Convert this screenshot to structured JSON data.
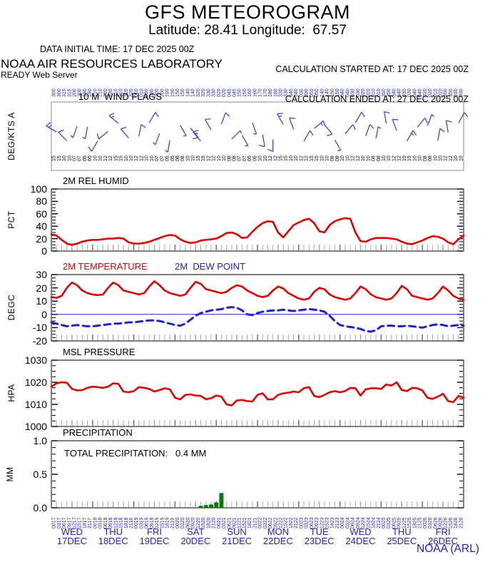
{
  "header": {
    "title": "GFS METEOROGRAM",
    "subtitle": "Latitude: 28.41 Longitude:  67.57",
    "data_initial_time": "DATA INITIAL TIME: 17 DEC 2025 00Z",
    "calc_started": "CALCULATION STARTED AT: 17 DEC 2025 00Z",
    "calc_ended": "CALCULATION ENDED AT: 27 DEC 2025 00Z",
    "org": "NOAA AIR RESOURCES LABORATORY",
    "server": "READY Web Server"
  },
  "footer": {
    "credit": "NOAA (ARL)"
  },
  "colors": {
    "red": "#e00000",
    "blue": "#2222cc",
    "barb_blue": "#4444d4",
    "green": "#0b7a0b",
    "tick_gray": "#aaaaaa",
    "tick_dark": "#777777",
    "wind_border": "#888888"
  },
  "x_axis": {
    "hours_per_step": 3,
    "hour_cycle": [
      "00",
      "03",
      "06",
      "09",
      "12",
      "15",
      "18",
      "21"
    ],
    "days": [
      {
        "dow": "WED",
        "date": "17DEC"
      },
      {
        "dow": "THU",
        "date": "18DEC"
      },
      {
        "dow": "FRI",
        "date": "19DEC"
      },
      {
        "dow": "SAT",
        "date": "20DEC"
      },
      {
        "dow": "SUN",
        "date": "21DEC"
      },
      {
        "dow": "MON",
        "date": "22DEC"
      },
      {
        "dow": "TUE",
        "date": "23DEC"
      },
      {
        "dow": "WED",
        "date": "24DEC"
      },
      {
        "dow": "THU",
        "date": "25DEC"
      },
      {
        "dow": "FRI",
        "date": "26DEC"
      }
    ]
  },
  "chart_data": [
    {
      "id": "wind",
      "type": "wind-barbs",
      "title": "10 M  WIND FLAGS",
      "ylabel": "DEG/KTS A",
      "barbs": [
        {
          "dir": 300,
          "spd": 15
        },
        {
          "dir": 315,
          "spd": 10
        },
        {
          "dir": 200,
          "spd": 7
        },
        {
          "dir": 190,
          "spd": 5
        },
        {
          "dir": 210,
          "spd": 10
        },
        {
          "dir": 230,
          "spd": 12
        },
        {
          "dir": 310,
          "spd": 15
        },
        {
          "dir": 320,
          "spd": 10
        },
        {
          "dir": 10,
          "spd": 12
        },
        {
          "dir": 30,
          "spd": 10
        },
        {
          "dir": 200,
          "spd": 7
        },
        {
          "dir": 190,
          "spd": 5
        },
        {
          "dir": 150,
          "spd": 8
        },
        {
          "dir": 140,
          "spd": 10
        },
        {
          "dir": 320,
          "spd": 15
        },
        {
          "dir": 330,
          "spd": 12
        },
        {
          "dir": 20,
          "spd": 10
        },
        {
          "dir": 45,
          "spd": 8
        },
        {
          "dir": 150,
          "spd": 7
        },
        {
          "dir": 160,
          "spd": 5
        },
        {
          "dir": 170,
          "spd": 10
        },
        {
          "dir": 180,
          "spd": 12
        },
        {
          "dir": 330,
          "spd": 15
        },
        {
          "dir": 340,
          "spd": 10
        },
        {
          "dir": 30,
          "spd": 12
        },
        {
          "dir": 50,
          "spd": 15
        },
        {
          "dir": 140,
          "spd": 10
        },
        {
          "dir": 150,
          "spd": 8
        },
        {
          "dir": 40,
          "spd": 10
        },
        {
          "dir": 30,
          "spd": 12
        },
        {
          "dir": 20,
          "spd": 10
        },
        {
          "dir": 10,
          "spd": 8
        },
        {
          "dir": 350,
          "spd": 10
        },
        {
          "dir": 340,
          "spd": 12
        },
        {
          "dir": 30,
          "spd": 15
        },
        {
          "dir": 40,
          "spd": 10
        },
        {
          "dir": 20,
          "spd": 8
        },
        {
          "dir": 10,
          "spd": 10
        },
        {
          "dir": 350,
          "spd": 12
        },
        {
          "dir": 30,
          "spd": 10
        }
      ]
    },
    {
      "id": "humidity",
      "type": "line",
      "title": "2M REL HUMID",
      "ylabel": "PCT",
      "ylim": [
        0,
        100
      ],
      "yticks": [
        {
          "v": 100,
          "label": "100"
        },
        {
          "v": 80,
          "label": "80"
        },
        {
          "v": 60,
          "label": "60"
        },
        {
          "v": 40,
          "label": "40"
        },
        {
          "v": 20,
          "label": "20"
        },
        {
          "v": 0,
          "label": "0"
        }
      ],
      "ytick_minor": 5,
      "series": [
        {
          "name": "2M REL HUMID",
          "color": "#e00000",
          "style": "solid",
          "values": [
            27,
            25,
            18,
            12,
            10,
            12,
            15,
            17,
            18,
            18,
            19,
            20,
            20,
            21,
            20,
            14,
            12,
            12,
            13,
            15,
            18,
            21,
            24,
            26,
            25,
            19,
            15,
            13,
            14,
            17,
            18,
            19,
            20,
            24,
            29,
            30,
            27,
            21,
            22,
            31,
            39,
            45,
            48,
            47,
            30,
            22,
            32,
            42,
            46,
            50,
            52,
            45,
            32,
            30,
            42,
            48,
            51,
            53,
            52,
            30,
            16,
            15,
            19,
            21,
            21,
            21,
            20,
            19,
            15,
            12,
            11,
            14,
            17,
            21,
            24,
            23,
            20,
            14,
            11,
            19,
            25
          ]
        }
      ]
    },
    {
      "id": "temperature",
      "type": "line",
      "title": "2M TEMPERATURE",
      "legend": [
        {
          "label": "2M TEMPERATURE",
          "color": "#e00000"
        },
        {
          "label": "2M  DEW POINT",
          "color": "#2222cc"
        }
      ],
      "ylabel": "DEGC",
      "ylim": [
        -20,
        30
      ],
      "yticks": [
        {
          "v": 30,
          "label": "30"
        },
        {
          "v": 20,
          "label": "20"
        },
        {
          "v": 10,
          "label": "10"
        },
        {
          "v": 0,
          "label": "0"
        },
        {
          "v": -10,
          "label": "-10"
        },
        {
          "v": -20,
          "label": "-20"
        }
      ],
      "ytick_minor": 2.5,
      "zero_line": true,
      "series": [
        {
          "name": "2M TEMPERATURE",
          "color": "#e00000",
          "style": "solid",
          "values": [
            13,
            12.5,
            14,
            20,
            24,
            22,
            18,
            16,
            15,
            14.5,
            15,
            20,
            24,
            22,
            18,
            17,
            16,
            15,
            16,
            21,
            25,
            22,
            18,
            16,
            15,
            14,
            15,
            20,
            24.5,
            23,
            19,
            18,
            17,
            16,
            17,
            20,
            22,
            21,
            18,
            16,
            14,
            13,
            14,
            18,
            21,
            19.5,
            16,
            14,
            12,
            11,
            12,
            17,
            20,
            19,
            15,
            13,
            12,
            11,
            12,
            16,
            21,
            19,
            15,
            13,
            12,
            11,
            12,
            16,
            21.5,
            19,
            14,
            13,
            12,
            11,
            12,
            16,
            21,
            18,
            14,
            12,
            11
          ]
        },
        {
          "name": "2M  DEW POINT",
          "color": "#2222cc",
          "style": "dashed",
          "values": [
            -6,
            -7,
            -8,
            -9,
            -8.5,
            -8,
            -8.5,
            -9,
            -9,
            -8.5,
            -8,
            -7.5,
            -7,
            -7,
            -6.5,
            -6,
            -6,
            -5.5,
            -5,
            -4.5,
            -4.5,
            -5,
            -6,
            -7,
            -8,
            -8.5,
            -7,
            -4,
            -1,
            1,
            2,
            3,
            3.5,
            4,
            5,
            5.5,
            5,
            3,
            0,
            -0.5,
            1,
            2,
            2.5,
            3,
            3,
            3.5,
            3,
            2.5,
            3,
            3.5,
            4,
            3.5,
            3,
            2,
            -1,
            -5,
            -8,
            -9,
            -9.5,
            -10,
            -11,
            -12.5,
            -13,
            -12,
            -9,
            -8.5,
            -8.5,
            -9,
            -9,
            -8.5,
            -9,
            -9.5,
            -10,
            -9,
            -8,
            -7.5,
            -8,
            -9,
            -8.5,
            -8,
            -8.5
          ]
        }
      ]
    },
    {
      "id": "pressure",
      "type": "line",
      "title": "MSL PRESSURE",
      "ylabel": "HPA",
      "ylim": [
        1000,
        1030
      ],
      "yticks": [
        {
          "v": 1030,
          "label": "1030"
        },
        {
          "v": 1020,
          "label": "1020"
        },
        {
          "v": 1010,
          "label": "1010"
        },
        {
          "v": 1000,
          "label": "1000"
        }
      ],
      "ytick_minor": 2.5,
      "series": [
        {
          "name": "MSL PRESSURE",
          "color": "#e00000",
          "style": "solid",
          "values": [
            1018,
            1019.5,
            1020,
            1019.8,
            1017,
            1016.3,
            1016.5,
            1017.5,
            1018,
            1017.8,
            1017.5,
            1018,
            1019.5,
            1019.3,
            1015.8,
            1015.5,
            1016,
            1017.8,
            1017.5,
            1017,
            1015.8,
            1016.5,
            1017.3,
            1016.8,
            1013,
            1012.3,
            1014.3,
            1014.5,
            1014,
            1013.8,
            1012.3,
            1012.8,
            1014,
            1013.5,
            1010,
            1009.5,
            1011.8,
            1012,
            1011.5,
            1011.3,
            1014.3,
            1015,
            1012.3,
            1012.3,
            1014.3,
            1015,
            1015.3,
            1015.8,
            1015.5,
            1017.3,
            1017.8,
            1013.8,
            1013.3,
            1014.3,
            1015.5,
            1016,
            1015.5,
            1016,
            1017.5,
            1017.3,
            1014,
            1016.8,
            1017.3,
            1017.3,
            1017,
            1019,
            1018.5,
            1020,
            1016.5,
            1016,
            1017.5,
            1017.3,
            1016.3,
            1013,
            1012.5,
            1013.5,
            1014.8,
            1011.5,
            1011,
            1013.8,
            1013
          ]
        }
      ]
    },
    {
      "id": "precip",
      "type": "bar",
      "title": "PRECIPITATION",
      "annotation": "TOTAL PRECIPITATION:   0.4 MM",
      "ylabel": "MM",
      "ylim": [
        0,
        1
      ],
      "yticks": [
        {
          "v": 1,
          "label": "1.0"
        },
        {
          "v": 0.5,
          "label": "0.5"
        },
        {
          "v": 0,
          "label": "0.0"
        }
      ],
      "ytick_minor": 0.1,
      "n_steps": 81,
      "bar_color": "#0b7a0b",
      "bars": [
        {
          "i": 29,
          "v": 0.03
        },
        {
          "i": 30,
          "v": 0.04
        },
        {
          "i": 31,
          "v": 0.05
        },
        {
          "i": 32,
          "v": 0.08
        },
        {
          "i": 33,
          "v": 0.22
        }
      ]
    }
  ]
}
